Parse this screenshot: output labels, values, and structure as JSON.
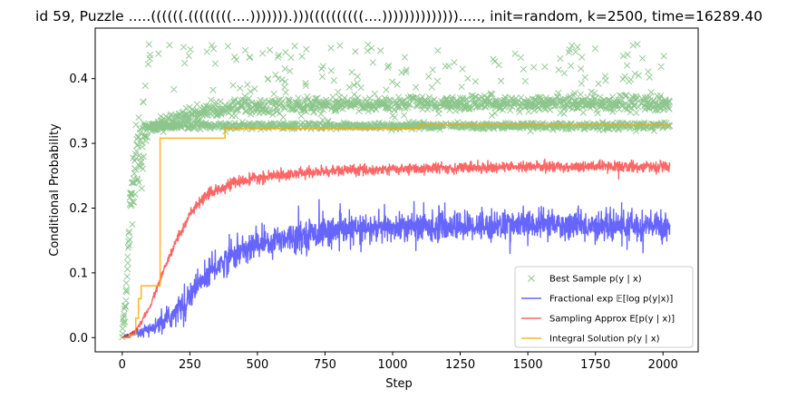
{
  "chart_data": {
    "type": "line",
    "title": "id 59, Puzzle .....((((((.((((((((....))))))).)))((((((((((....)))))))))))))).....,  init=random, k=2500, time=16289.40",
    "xlabel": "Step",
    "ylabel": "Conditional Probability",
    "xlim": [
      -100,
      2130
    ],
    "ylim": [
      -0.022,
      0.478
    ],
    "xticks": [
      0,
      250,
      500,
      750,
      1000,
      1250,
      1500,
      1750,
      2000
    ],
    "xtick_labels": [
      "0",
      "250",
      "500",
      "750",
      "1000",
      "1250",
      "1500",
      "1750",
      "2000"
    ],
    "yticks": [
      0.0,
      0.1,
      0.2,
      0.3,
      0.4
    ],
    "ytick_labels": [
      "0.0",
      "0.1",
      "0.2",
      "0.3",
      "0.4"
    ],
    "grid": false,
    "legend_position": "lower-right",
    "series": [
      {
        "name": "Best Sample p(y | x)",
        "kind": "scatter",
        "marker": "x",
        "color": "#008000",
        "alpha": 0.45,
        "n_points": 2026,
        "clusters": [
          {
            "level": 0.327,
            "from_step": 80,
            "to_step": 2025,
            "spread": 0.004
          },
          {
            "level": 0.362,
            "from_step": 150,
            "to_step": 2025,
            "spread": 0.008
          },
          {
            "level": 0.42,
            "from_step": 200,
            "to_step": 2025,
            "spread": 0.03
          }
        ],
        "anchors": [
          [
            0,
            0.0
          ],
          [
            10,
            0.05
          ],
          [
            20,
            0.11
          ],
          [
            30,
            0.2
          ],
          [
            40,
            0.25
          ],
          [
            60,
            0.29
          ],
          [
            80,
            0.31
          ],
          [
            120,
            0.325
          ],
          [
            150,
            0.33
          ],
          [
            250,
            0.345
          ],
          [
            400,
            0.355
          ],
          [
            700,
            0.36
          ],
          [
            2025,
            0.362
          ]
        ]
      },
      {
        "name": "Fractional exp 𝔼[log p(y|x)]",
        "kind": "line",
        "color": "#0000ff",
        "alpha": 0.6,
        "noise_amplitude": 0.02,
        "anchors": [
          [
            0,
            0.0
          ],
          [
            50,
            0.005
          ],
          [
            100,
            0.012
          ],
          [
            150,
            0.022
          ],
          [
            200,
            0.04
          ],
          [
            250,
            0.065
          ],
          [
            300,
            0.09
          ],
          [
            350,
            0.11
          ],
          [
            400,
            0.125
          ],
          [
            500,
            0.145
          ],
          [
            600,
            0.155
          ],
          [
            750,
            0.163
          ],
          [
            1000,
            0.17
          ],
          [
            1250,
            0.172
          ],
          [
            1500,
            0.175
          ],
          [
            1750,
            0.172
          ],
          [
            2025,
            0.172
          ]
        ]
      },
      {
        "name": "Sampling Approx E[p(y | x)]",
        "kind": "line",
        "color": "#ff0000",
        "alpha": 0.6,
        "noise_amplitude": 0.004,
        "anchors": [
          [
            0,
            0.0
          ],
          [
            50,
            0.01
          ],
          [
            100,
            0.045
          ],
          [
            150,
            0.1
          ],
          [
            200,
            0.15
          ],
          [
            250,
            0.19
          ],
          [
            300,
            0.215
          ],
          [
            350,
            0.228
          ],
          [
            400,
            0.238
          ],
          [
            500,
            0.246
          ],
          [
            600,
            0.252
          ],
          [
            700,
            0.255
          ],
          [
            800,
            0.258
          ],
          [
            1000,
            0.26
          ],
          [
            1200,
            0.262
          ],
          [
            1500,
            0.264
          ],
          [
            2025,
            0.264
          ]
        ]
      },
      {
        "name": "Integral Solution p(y | x)",
        "kind": "step",
        "color": "#ffa500",
        "alpha": 0.8,
        "steps": [
          [
            0,
            0.0
          ],
          [
            30,
            0.005
          ],
          [
            50,
            0.03
          ],
          [
            60,
            0.06
          ],
          [
            70,
            0.08
          ],
          [
            140,
            0.308
          ],
          [
            380,
            0.323
          ],
          [
            1100,
            0.328
          ],
          [
            2025,
            0.328
          ]
        ]
      }
    ]
  }
}
